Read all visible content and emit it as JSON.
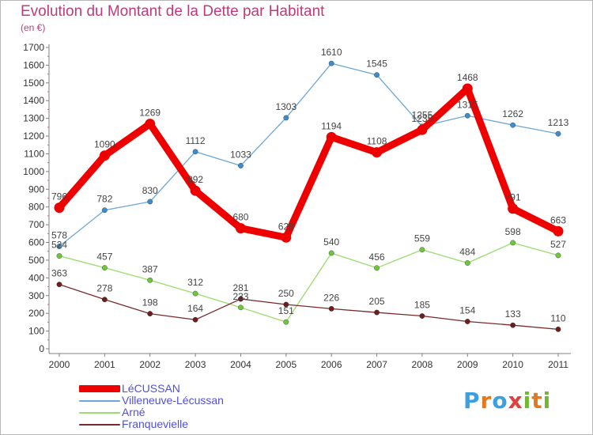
{
  "header": {
    "title": "Evolution du Montant de la Dette par Habitant",
    "subtitle": "(en €)"
  },
  "colors": {
    "title": "#c03a7a",
    "legend_text": "#5050d8",
    "axis": "#808080",
    "grid": "#dcdcdc"
  },
  "logo": {
    "text": "Proxiti",
    "letters": [
      "P",
      "r",
      "o",
      "x",
      "i",
      "t",
      "i"
    ],
    "letter_colors": [
      "#3aa0e0",
      "#e07a20",
      "#3aa0e0",
      "#e04040",
      "#70b830",
      "#e07a20",
      "#70b830"
    ]
  },
  "chart_data": {
    "type": "line",
    "title": "Evolution du Montant de la Dette par Habitant",
    "subtitle": "(en €)",
    "xlabel": "",
    "ylabel": "",
    "categories": [
      "2000",
      "2001",
      "2002",
      "2003",
      "2004",
      "2005",
      "2006",
      "2007",
      "2008",
      "2009",
      "2010",
      "2011"
    ],
    "ylim": [
      0,
      1700
    ],
    "yticks": [
      0,
      100,
      200,
      300,
      400,
      500,
      600,
      700,
      800,
      900,
      1000,
      1100,
      1200,
      1300,
      1400,
      1500,
      1600,
      1700
    ],
    "grid": false,
    "legend_position": "bottom-left",
    "series": [
      {
        "name": "LéCUSSAN",
        "color": "#ee0000",
        "thick": true,
        "values": [
          796,
          1090,
          1269,
          892,
          680,
          628,
          1194,
          1108,
          1235,
          1468,
          791,
          663
        ],
        "labels": [
          "796",
          "1090",
          "1269",
          "892",
          "680",
          "628",
          "1194",
          "1108",
          "1235",
          "1468",
          "791",
          "663"
        ]
      },
      {
        "name": "Villeneuve-Lécussan",
        "color": "#6ca6d8",
        "marker": "#3d8ccc",
        "values": [
          578,
          782,
          830,
          1112,
          1033,
          1303,
          1610,
          1545,
          1255,
          1315,
          1262,
          1213
        ],
        "labels": [
          "578",
          "782",
          "830",
          "1112",
          "1033",
          "1303",
          "1610",
          "1545",
          "1255",
          "1315",
          "1262",
          "1213"
        ]
      },
      {
        "name": "Arné",
        "color": "#9adc6e",
        "marker": "#6cc83a",
        "values": [
          524,
          457,
          387,
          312,
          233,
          151,
          540,
          456,
          559,
          484,
          598,
          527
        ],
        "labels": [
          "524",
          "457",
          "387",
          "312",
          "233",
          "151",
          "540",
          "456",
          "559",
          "484",
          "598",
          "527"
        ]
      },
      {
        "name": "Franquevielle",
        "color": "#7a2a2a",
        "marker": "#6a1e1e",
        "values": [
          363,
          278,
          198,
          164,
          281,
          250,
          226,
          205,
          185,
          154,
          133,
          110
        ],
        "labels": [
          "363",
          "278",
          "198",
          "164",
          "281",
          "250",
          "226",
          "205",
          "185",
          "154",
          "133",
          "110"
        ]
      }
    ]
  }
}
